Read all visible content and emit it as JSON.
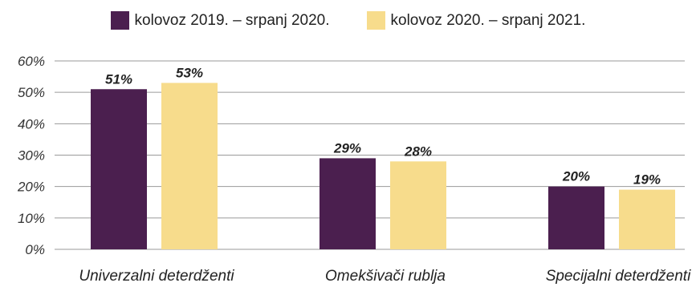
{
  "chart_data": {
    "type": "bar",
    "categories": [
      "Univerzalni deterdženti",
      "Omekšivači rublja",
      "Specijalni deterdženti"
    ],
    "series": [
      {
        "name": "kolovoz 2019. – srpanj 2020.",
        "values": [
          51,
          29,
          20
        ],
        "labels": [
          "51%",
          "29%",
          "20%"
        ],
        "color": "#4b1f4f"
      },
      {
        "name": "kolovoz 2020. – srpanj 2021.",
        "values": [
          53,
          28,
          19
        ],
        "labels": [
          "53%",
          "28%",
          "19%"
        ],
        "color": "#f7dc8c"
      }
    ],
    "yticks": [
      "0%",
      "10%",
      "20%",
      "30%",
      "40%",
      "50%",
      "60%"
    ],
    "ylim": [
      0,
      60
    ],
    "grid": true,
    "legend_position": "top-center",
    "title": "",
    "xlabel": "",
    "ylabel": ""
  }
}
